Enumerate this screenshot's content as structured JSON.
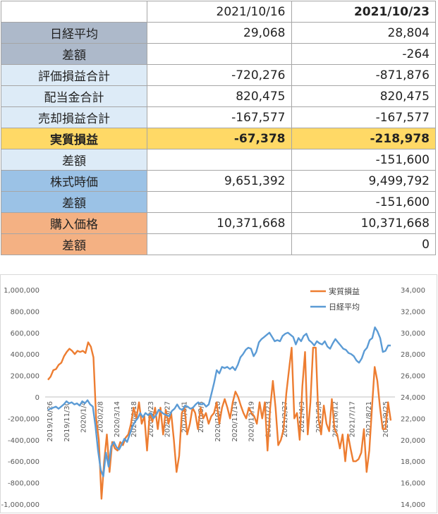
{
  "table": {
    "headers": [
      "",
      "2021/10/16",
      "2021/10/23"
    ],
    "rows": [
      {
        "label": "日経平均",
        "v1": "29,068",
        "v2": "28,804"
      },
      {
        "label": "差額",
        "v1": "",
        "v2": "-264"
      },
      {
        "label": "評価損益合計",
        "v1": "-720,276",
        "v2": "-871,876"
      },
      {
        "label": "配当金合計",
        "v1": "820,475",
        "v2": "820,475"
      },
      {
        "label": "売却損益合計",
        "v1": "-167,577",
        "v2": "-167,577"
      },
      {
        "label": "実質損益",
        "v1": "-67,378",
        "v2": "-218,978"
      },
      {
        "label": "差額",
        "v1": "",
        "v2": "-151,600"
      },
      {
        "label": "株式時価",
        "v1": "9,651,392",
        "v2": "9,499,792"
      },
      {
        "label": "差額",
        "v1": "",
        "v2": "-151,600"
      },
      {
        "label": "購入価格",
        "v1": "10,371,668",
        "v2": "10,371,668"
      },
      {
        "label": "差額",
        "v1": "",
        "v2": "0"
      }
    ]
  },
  "colors": {
    "gray": "#adb9ca",
    "light_blue": "#ddebf7",
    "yellow": "#ffd966",
    "mid_blue": "#9bc2e6",
    "orange": "#f4b183",
    "negative": "#e8322e",
    "series_orange": "#ed7d31",
    "series_blue": "#5b9bd5"
  },
  "chart_data": {
    "type": "line",
    "x_ticks": [
      "2019/10/26",
      "2019/11/30",
      "2020/1/4",
      "2020/2/8",
      "2020/3/14",
      "2020/4/18",
      "2020/5/23",
      "2020/6/27",
      "2020/8/1",
      "2020/9/5",
      "2020/10/10",
      "2020/11/14",
      "2020/12/19",
      "2021/1/23",
      "2021/2/27",
      "2021/4/3",
      "2021/5/8",
      "2021/6/12",
      "2021/7/17",
      "2021/8/21",
      "2021/9/25"
    ],
    "y_left_ticks": [
      "1,000,000",
      "800,000",
      "600,000",
      "400,000",
      "200,000",
      "0",
      "-200,000",
      "-400,000",
      "-600,000",
      "-800,000",
      "-1,000,000"
    ],
    "y_right_ticks": [
      "34,000",
      "32,000",
      "30,000",
      "28,000",
      "26,000",
      "24,000",
      "22,000",
      "20,000",
      "18,000",
      "16,000",
      "14,000"
    ],
    "y_left_range": [
      -1000000,
      1000000
    ],
    "y_right_range": [
      14000,
      34000
    ],
    "legend_position": "top-right",
    "series": [
      {
        "name": "実質損益",
        "axis": "left",
        "color": "#ed7d31",
        "values": [
          160000,
          190000,
          250000,
          260000,
          300000,
          320000,
          380000,
          420000,
          450000,
          430000,
          400000,
          430000,
          420000,
          430000,
          410000,
          510000,
          470000,
          370000,
          -200000,
          -400000,
          -950000,
          -600000,
          -350000,
          -700000,
          -420000,
          -480000,
          -500000,
          -420000,
          -450000,
          -380000,
          -350000,
          -250000,
          -100000,
          -200000,
          -50000,
          -250000,
          -180000,
          -500000,
          -150000,
          -230000,
          -100000,
          -300000,
          -100000,
          -350000,
          -120000,
          -250000,
          -150000,
          -400000,
          -700000,
          -550000,
          -150000,
          -100000,
          -350000,
          -250000,
          -100000,
          -150000,
          -300000,
          -100000,
          -200000,
          -150000,
          -250000,
          -180000,
          -150000,
          -50000,
          -250000,
          -100000,
          -20000,
          -100000,
          -200000,
          -50000,
          50000,
          0,
          -80000,
          -150000,
          -200000,
          -100000,
          -150000,
          -180000,
          -250000,
          -50000,
          -200000,
          -50000,
          -500000,
          -100000,
          150000,
          -100000,
          -450000,
          -400000,
          -300000,
          30000,
          250000,
          460000,
          -200000,
          -150000,
          -400000,
          100000,
          420000,
          -350000,
          -50000,
          460000,
          460000,
          -200000,
          -350000,
          -80000,
          -250000,
          -320000,
          -20000,
          -300000,
          -350000,
          -480000,
          -350000,
          -600000,
          -350000,
          -480000,
          -600000,
          -600000,
          -580000,
          -520000,
          -300000,
          -700000,
          -500000,
          -100000,
          280000,
          150000,
          -100000,
          -300000,
          -300000,
          -50000,
          -220000
        ]
      },
      {
        "name": "日経平均",
        "axis": "right",
        "color": "#5b9bd5",
        "values": [
          22800,
          22900,
          23000,
          23100,
          22900,
          23100,
          23300,
          23600,
          23400,
          23500,
          23300,
          23400,
          23200,
          23600,
          23400,
          23700,
          23300,
          23100,
          21300,
          19000,
          17200,
          16600,
          18800,
          17500,
          19400,
          19800,
          19300,
          19100,
          19600,
          20100,
          19800,
          20500,
          21200,
          21700,
          22000,
          22500,
          22100,
          22500,
          22300,
          22500,
          22000,
          22300,
          22800,
          22600,
          22400,
          22300,
          22200,
          22700,
          22900,
          23300,
          22900,
          22800,
          23200,
          23100,
          22900,
          23000,
          23300,
          23500,
          23300,
          23400,
          23100,
          23300,
          24300,
          25300,
          26500,
          26200,
          26800,
          26700,
          26800,
          26600,
          26800,
          26500,
          27000,
          27700,
          28000,
          28400,
          28600,
          28500,
          27800,
          28200,
          29100,
          29400,
          29600,
          29800,
          30000,
          29600,
          29200,
          29300,
          29200,
          29700,
          29900,
          30000,
          29800,
          29600,
          28900,
          29500,
          29200,
          29700,
          29900,
          29300,
          29100,
          28800,
          29200,
          29000,
          28900,
          29200,
          28700,
          28500,
          29000,
          29400,
          29100,
          28800,
          28500,
          28400,
          28100,
          28000,
          27800,
          27400,
          27200,
          27600,
          28300,
          28600,
          29300,
          29500,
          30500,
          30100,
          29500,
          28200,
          28300,
          28800,
          28800
        ]
      }
    ]
  }
}
